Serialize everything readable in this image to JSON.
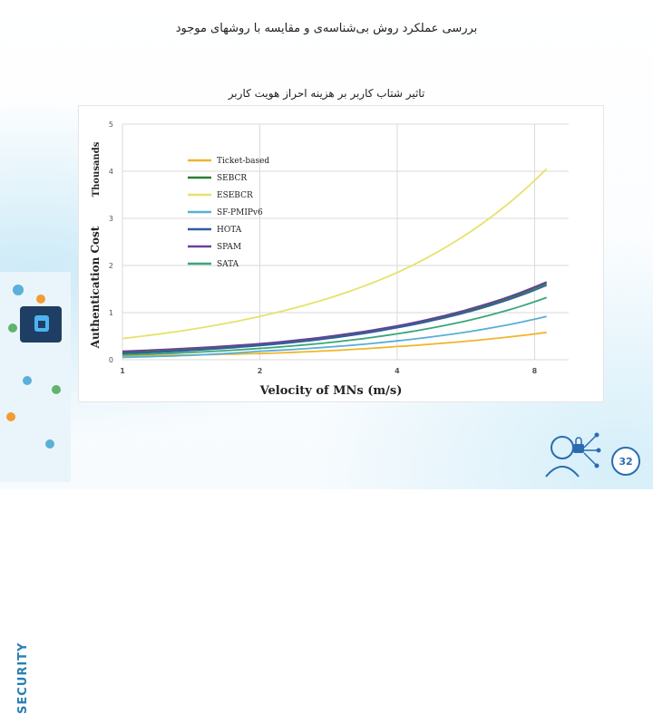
{
  "slide": {
    "title": "بررسی عملکرد روش بی‌شناسه‌ی و مقایسه با روشهای موجود",
    "subtitle": "تاثیر شتاب کاربر بر هزینه احراز هویت کاربر",
    "page_number": "32",
    "side_label": "SECURITY"
  },
  "colors": {
    "accent": "#2b6cb0"
  },
  "chart_data": {
    "type": "line",
    "xlabel": "Velocity of MNs (m/s)",
    "ylabel": "Authentication Cost",
    "yunit": "Thousands",
    "x_ticks": [
      "1",
      "2",
      "4",
      "8"
    ],
    "y_ticks": [
      "0",
      "1",
      "2",
      "3",
      "4",
      "5"
    ],
    "ylim": [
      0,
      5
    ],
    "x_scale": "log2",
    "x": [
      1,
      2,
      4,
      8.5
    ],
    "grid": true,
    "legend_position": "top-left",
    "series": [
      {
        "name": "Ticket-based",
        "color": "#f0b62c",
        "values": [
          0.08,
          0.13,
          0.28,
          0.58
        ]
      },
      {
        "name": "SEBCR",
        "color": "#2e7d32",
        "values": [
          0.15,
          0.32,
          0.7,
          1.62
        ]
      },
      {
        "name": "ESEBCR",
        "color": "#e6e26a",
        "values": [
          0.45,
          0.92,
          1.85,
          4.05
        ]
      },
      {
        "name": "SF-PMIPv6",
        "color": "#5aaed6",
        "values": [
          0.05,
          0.18,
          0.4,
          0.92
        ]
      },
      {
        "name": "HOTA",
        "color": "#2f5fa0",
        "values": [
          0.13,
          0.3,
          0.68,
          1.58
        ]
      },
      {
        "name": "SPAM",
        "color": "#6a3fa0",
        "values": [
          0.18,
          0.34,
          0.72,
          1.65
        ]
      },
      {
        "name": "SATA",
        "color": "#3aa67a",
        "values": [
          0.1,
          0.24,
          0.55,
          1.32
        ]
      }
    ]
  }
}
